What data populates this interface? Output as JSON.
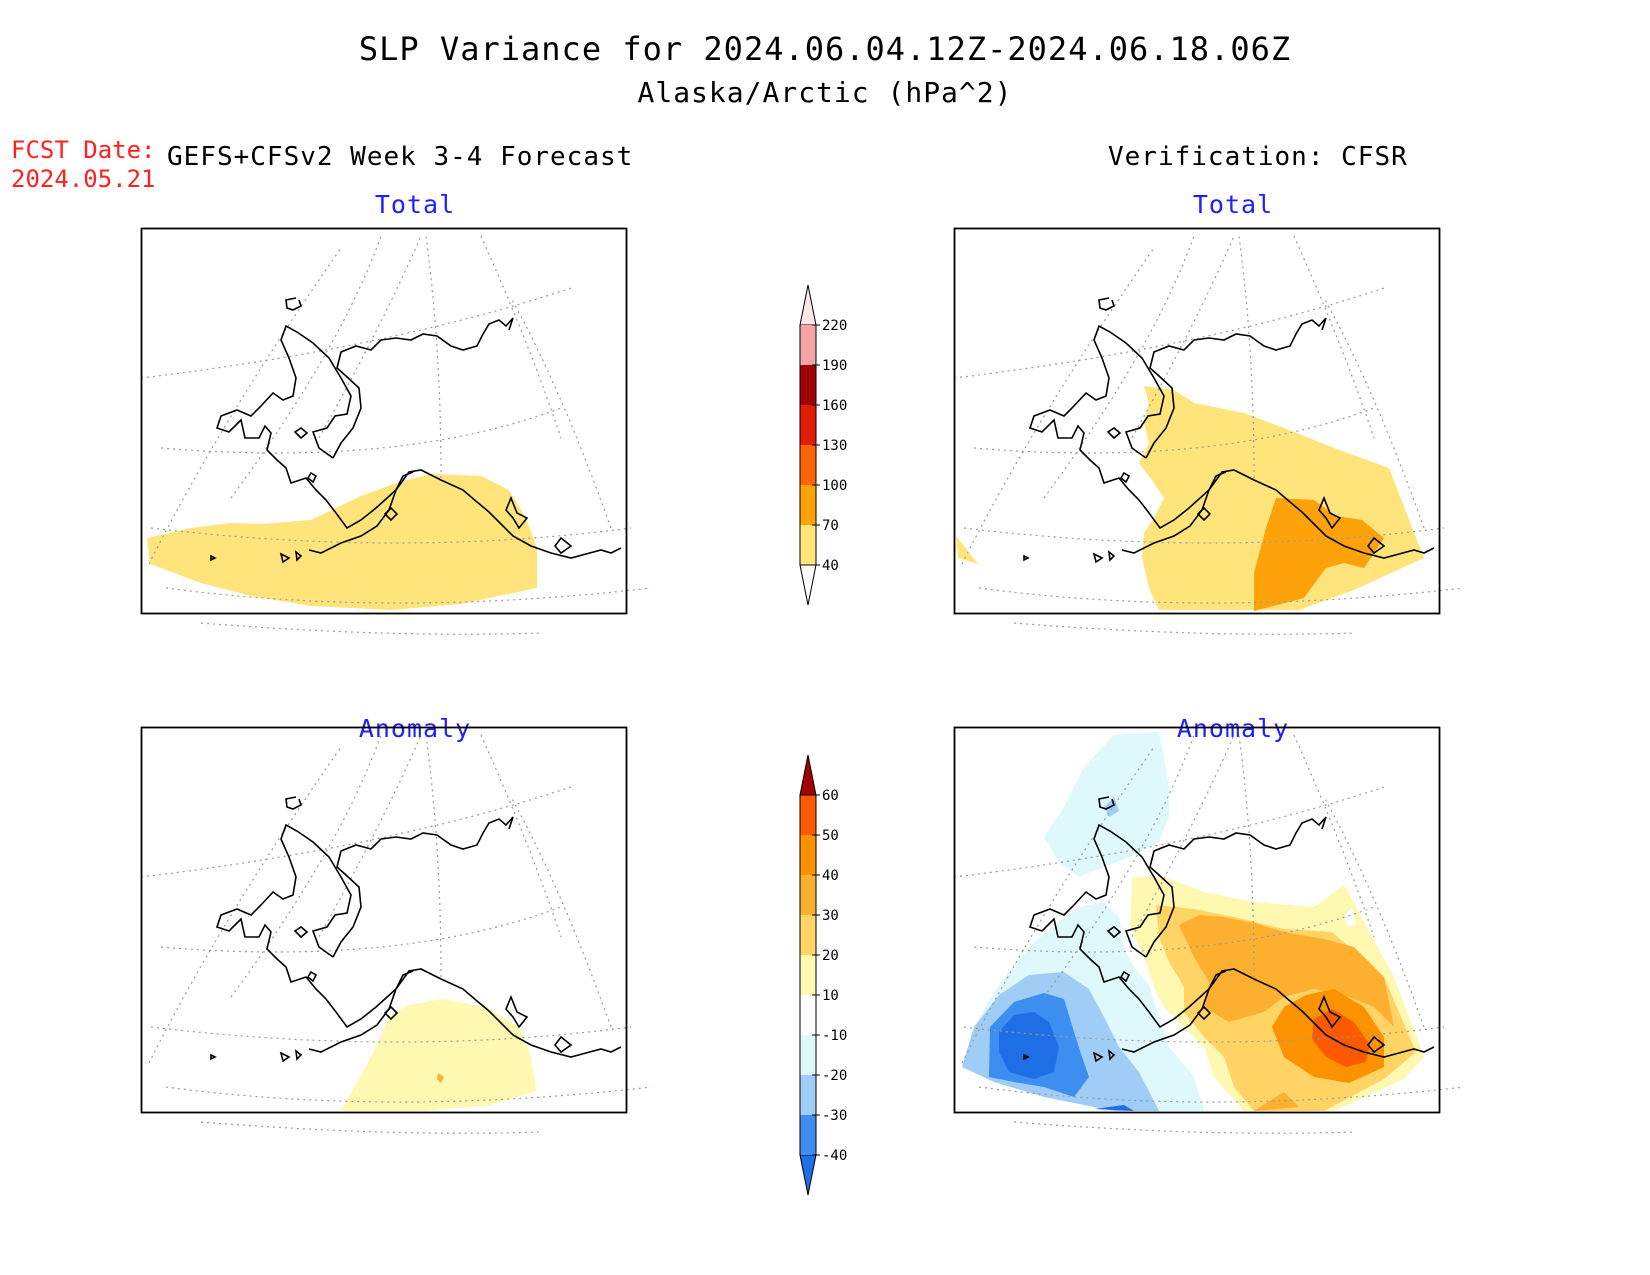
{
  "title": "SLP Variance for 2024.06.04.12Z-2024.06.18.06Z",
  "subtitle": "Alaska/Arctic (hPa^2)",
  "fcst": {
    "label": "FCST Date:",
    "value": "2024.05.21"
  },
  "forecast_heading": "GEFS+CFSv2 Week 3-4 Forecast",
  "verification_heading": "Verification: CFSR",
  "panels": {
    "forecast_total": {
      "title": "Total"
    },
    "verification_total": {
      "title": "Total"
    },
    "forecast_anomaly": {
      "title": "Anomaly"
    },
    "verification_anomaly": {
      "title": "Anomaly"
    }
  },
  "colorbars": {
    "total": {
      "labels": [
        "40",
        "70",
        "100",
        "130",
        "160",
        "190",
        "220"
      ],
      "colors": [
        "#fee47a",
        "#fda208",
        "#fd6407",
        "#e11d03",
        "#a10303",
        "#f4a4a4",
        "#fde6e6"
      ]
    },
    "anomaly": {
      "labels": [
        "-40",
        "-30",
        "-20",
        "-10",
        "10",
        "20",
        "30",
        "40",
        "50",
        "60"
      ],
      "colors": [
        "#1e6fe6",
        "#3c8ef0",
        "#9fcdf6",
        "#dff8fc",
        "#ffffff",
        "#fff8b0",
        "#ffd465",
        "#fdb030",
        "#fd9200",
        "#fd5a00",
        "#e11d03",
        "#a10303"
      ]
    }
  },
  "legend_colors": {
    "total_yellow": "#fee47a",
    "total_orange": "#fda208",
    "anom_yellow": "#fff8b0",
    "anom_gold": "#ffd465",
    "anom_orange": "#fdb030",
    "anom_dark_orange": "#fd9200",
    "anom_red_orange": "#fd5a00",
    "anom_lightest_blue": "#dff8fc",
    "anom_light_blue": "#9fcdf6",
    "anom_blue": "#3c8ef0",
    "anom_dark_blue": "#1e6fe6"
  }
}
